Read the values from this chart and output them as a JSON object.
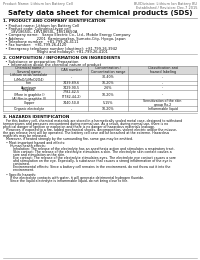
{
  "header_left": "Product Name: Lithium Ion Battery Cell",
  "header_right_line1": "BU/Division: Lithium Ion Battery BU",
  "header_right_line2": "Established / Revision: Dec.7 2015",
  "title": "Safety data sheet for chemical products (SDS)",
  "section1_title": "1. PRODUCT AND COMPANY IDENTIFICATION",
  "section1_lines": [
    "  • Product name: Lithium Ion Battery Cell",
    "  • Product code: Cylindrical-type cell",
    "       18V18650L, 18V18650L, 18V18650A",
    "  • Company name:   Sanyo Electric Co., Ltd., Mobile Energy Company",
    "  • Address:           2201  Kamimunakan, Sumoto-City, Hyogo, Japan",
    "  • Telephone number:   +81-799-26-4111",
    "  • Fax number:   +81-799-26-4120",
    "  • Emergency telephone number (daytime): +81-799-26-3942",
    "                              (Night and holidays): +81-799-26-4101"
  ],
  "section2_title": "2. COMPOSITION / INFORMATION ON INGREDIENTS",
  "section2_sub1": "  • Substance or preparation: Preparation",
  "section2_sub2": "    • Information about the chemical nature of product",
  "table_col_names": [
    "Chemical name /\nSeveral name",
    "CAS number",
    "Concentration /\nConcentration range",
    "Classification and\nhazard labeling"
  ],
  "table_rows": [
    [
      "Lithium oxide/tantalate\n(LiMnO/LiMnO2O4)",
      "-",
      "30-40%",
      "-"
    ],
    [
      "Iron",
      "7439-89-6",
      "10-20%",
      "-"
    ],
    [
      "Aluminum",
      "7429-90-5",
      "2-6%",
      "-"
    ],
    [
      "Graphite\n(More in graphite I)\n(AI film in graphite II)",
      "7782-42-5\n(7782-44-2)",
      "10-20%",
      "-"
    ],
    [
      "Copper",
      "7440-50-8",
      "5-15%",
      "Sensitization of the skin\ngroup Rx.2"
    ],
    [
      "Organic electrolyte",
      "-",
      "10-20%",
      "Inflammable liquid"
    ]
  ],
  "section3_title": "3. HAZARDS IDENTIFICATION",
  "section3_lines": [
    "   For this battery cell, chemical materials are stored in a hermetically sealed metal case, designed to withstand",
    "temperatures and pressures encountered during normal use. As a result, during normal use, there is no",
    "physical danger of ignition or explosion and there is no danger of hazardous materials leakage.",
    "   However, if exposed to a fire, added mechanical shocks, decomposition, violent electric and/or the misuse,",
    "the gas release vent will be operated. The battery cell case will be breached at the extreme. Hazardous",
    "materials may be released.",
    "   Moreover, if heated strongly by the surrounding fire, some gas may be emitted.",
    "",
    "   • Most important hazard and effects:",
    "       Human health effects:",
    "          Inhalation: The release of the electrolyte has an anesthesia action and stimulates a respiratory tract.",
    "          Skin contact: The release of the electrolyte stimulates a skin. The electrolyte skin contact causes a",
    "          sore and stimulation on the skin.",
    "          Eye contact: The release of the electrolyte stimulates eyes. The electrolyte eye contact causes a sore",
    "          and stimulation on the eye. Especially, a substance that causes a strong inflammation of the eye is",
    "          contained.",
    "          Environmental effects: Since a battery cell remains in the environment, do not throw out it into the",
    "          environment.",
    "",
    "   • Specific hazards:",
    "       If the electrolyte contacts with water, it will generate detrimental hydrogen fluoride.",
    "       Since the liquid electrolyte is inflammable liquid, do not bring close to fire."
  ],
  "bg_color": "#ffffff",
  "text_color": "#111111",
  "gray_text": "#666666",
  "line_color": "#999999",
  "table_header_bg": "#d8d8d8",
  "table_border": "#888888",
  "hdr_fontsize": 2.5,
  "title_fontsize": 5.0,
  "sec_title_fontsize": 3.0,
  "body_fontsize": 2.6,
  "table_fontsize": 2.5
}
